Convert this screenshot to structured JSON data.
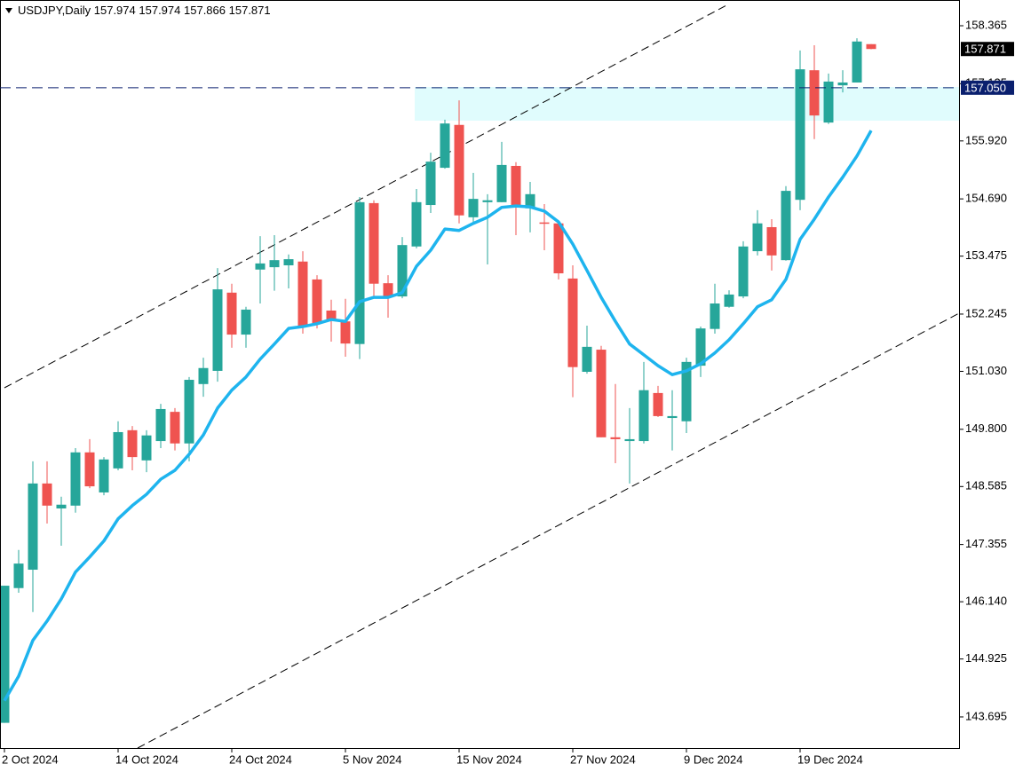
{
  "chart_data": {
    "type": "candlestick",
    "title": "USDJPY,Daily",
    "categories": [
      "2 Oct 2024",
      null,
      null,
      null,
      null,
      null,
      null,
      null,
      "14 Oct 2024",
      null,
      null,
      null,
      null,
      null,
      null,
      null,
      "24 Oct 2024",
      null,
      null,
      null,
      null,
      null,
      null,
      null,
      "5 Nov 2024",
      null,
      null,
      null,
      null,
      null,
      null,
      null,
      "15 Nov 2024",
      null,
      null,
      null,
      null,
      null,
      null,
      null,
      "27 Nov 2024",
      null,
      null,
      null,
      null,
      null,
      null,
      null,
      "9 Dec 2024",
      null,
      null,
      null,
      null,
      null,
      null,
      null,
      "19 Dec 2024",
      null,
      null,
      null,
      null,
      null
    ],
    "open": [
      143.57,
      146.43,
      146.82,
      148.65,
      148.12,
      148.18,
      149.31,
      148.46,
      148.97,
      149.78,
      149.14,
      149.55,
      150.17,
      149.5,
      150.76,
      151.04,
      152.7,
      151.81,
      153.19,
      153.24,
      153.28,
      153.36,
      152.98,
      152.32,
      152.09,
      151.61,
      154.6,
      152.9,
      152.62,
      153.68,
      154.56,
      155.35,
      156.26,
      154.3,
      154.62,
      154.62,
      155.39,
      154.49,
      154.19,
      154.17,
      153.0,
      151.02,
      151.49,
      149.63,
      149.55,
      149.55,
      150.57,
      150.04,
      149.97,
      151.15,
      151.93,
      152.4,
      152.62,
      153.58,
      154.09,
      153.39,
      154.67,
      157.42,
      156.31,
      157.1,
      157.16,
      157.974
    ],
    "high": [
      146.48,
      147.24,
      149.12,
      149.12,
      148.37,
      149.4,
      149.59,
      149.21,
      149.97,
      149.87,
      149.78,
      150.34,
      150.25,
      150.91,
      151.32,
      153.22,
      152.89,
      152.4,
      153.9,
      153.92,
      153.51,
      153.58,
      153.07,
      152.55,
      152.57,
      154.73,
      154.66,
      153.07,
      153.88,
      154.9,
      155.67,
      156.37,
      156.78,
      155.24,
      154.79,
      155.9,
      155.47,
      155.05,
      154.58,
      154.22,
      153.28,
      152.0,
      151.57,
      150.76,
      150.25,
      151.23,
      150.72,
      150.63,
      151.32,
      151.98,
      152.89,
      152.75,
      153.79,
      154.45,
      154.26,
      154.96,
      157.84,
      157.95,
      157.35,
      157.42,
      158.1,
      157.974
    ],
    "low": [
      143.57,
      146.33,
      145.92,
      147.8,
      147.33,
      148.03,
      148.55,
      148.4,
      148.93,
      148.93,
      148.89,
      149.4,
      149.35,
      149.12,
      150.49,
      150.81,
      151.53,
      151.53,
      152.47,
      152.74,
      152.79,
      151.83,
      151.94,
      151.66,
      151.34,
      151.29,
      152.6,
      152.17,
      152.58,
      153.64,
      154.39,
      155.33,
      154.17,
      154.15,
      153.3,
      154.62,
      153.92,
      153.98,
      153.6,
      152.98,
      150.48,
      150.98,
      149.63,
      149.08,
      148.65,
      149.5,
      150.06,
      149.35,
      149.72,
      150.91,
      151.83,
      152.38,
      152.58,
      153.49,
      153.17,
      153.38,
      154.45,
      155.96,
      156.28,
      156.95,
      157.16,
      157.866
    ],
    "close": [
      146.48,
      146.95,
      148.65,
      148.18,
      148.2,
      149.31,
      148.59,
      149.16,
      149.74,
      149.21,
      149.67,
      150.23,
      149.5,
      150.85,
      151.1,
      152.77,
      151.81,
      152.34,
      153.32,
      153.39,
      153.41,
      151.98,
      152.04,
      152.13,
      151.62,
      154.62,
      152.89,
      152.6,
      153.71,
      154.62,
      155.48,
      156.29,
      154.34,
      154.69,
      154.66,
      155.41,
      154.54,
      154.79,
      154.17,
      153.11,
      151.12,
      151.55,
      149.63,
      149.59,
      149.59,
      150.63,
      150.08,
      150.08,
      151.23,
      151.94,
      152.47,
      152.66,
      153.68,
      154.17,
      153.49,
      154.86,
      157.44,
      156.46,
      157.18,
      157.16,
      158.03,
      157.871
    ],
    "up_color": "#26a69a",
    "down_color": "#ef5350",
    "series": [
      {
        "color": "#1eb4ee",
        "values": [
          144.04,
          144.56,
          145.32,
          145.73,
          146.2,
          146.77,
          147.09,
          147.43,
          147.9,
          148.18,
          148.42,
          148.74,
          148.93,
          149.27,
          149.68,
          150.25,
          150.63,
          150.91,
          151.29,
          151.61,
          151.94,
          151.98,
          152.04,
          152.13,
          152.09,
          152.51,
          152.6,
          152.6,
          152.7,
          153.26,
          153.6,
          154.05,
          154.02,
          154.17,
          154.3,
          154.51,
          154.54,
          154.52,
          154.43,
          154.2,
          153.73,
          153.17,
          152.6,
          152.09,
          151.61,
          151.38,
          151.15,
          150.96,
          151.04,
          151.19,
          151.42,
          151.7,
          152.04,
          152.4,
          152.55,
          152.98,
          153.83,
          154.26,
          154.73,
          155.15,
          155.6,
          156.14
        ]
      }
    ],
    "hline": {
      "value": 157.05,
      "label": "157.050",
      "color": "#0a1f6e"
    },
    "ylim": [
      143.035,
      158.911
    ],
    "yticks": [
      143.695,
      144.925,
      {
        "value": 146.14,
        "label": "146.140"
      },
      147.355,
      148.585,
      {
        "value": 149.8,
        "label": "149.800"
      },
      {
        "value": 151.03,
        "label": "151.030"
      },
      152.245,
      153.475,
      {
        "value": 154.69,
        "label": "154.690"
      },
      {
        "value": 155.92,
        "label": "155.920"
      },
      157.135,
      158.365
    ],
    "grid": false
  }
}
